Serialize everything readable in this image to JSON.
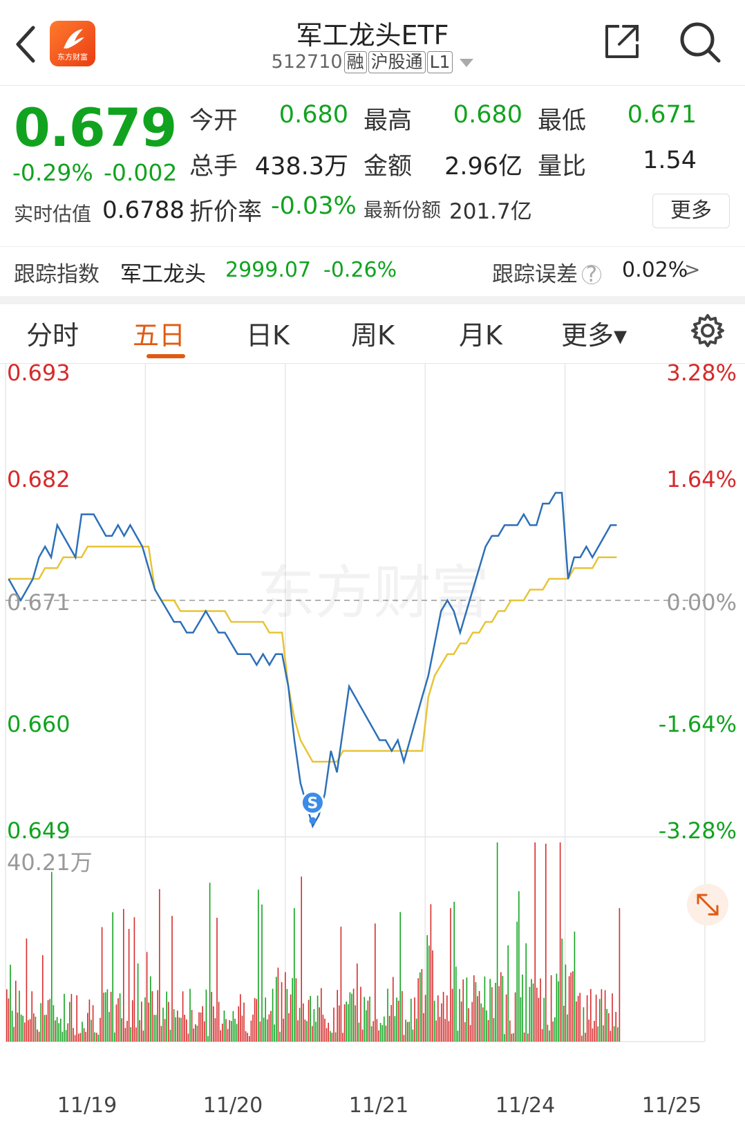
{
  "header": {
    "title": "军工龙头ETF",
    "code": "512710",
    "tags": [
      "融",
      "沪股通",
      "L1"
    ],
    "logo_text": "东方财富"
  },
  "quote": {
    "price": "0.679",
    "change_pct": "-0.29%",
    "change_abs": "-0.002",
    "open_label": "今开",
    "open": "0.680",
    "high_label": "最高",
    "high": "0.680",
    "low_label": "最低",
    "low": "0.671",
    "volume_label": "总手",
    "volume": "438.3万",
    "amount_label": "金额",
    "amount": "2.96亿",
    "ratio_label": "量比",
    "ratio": "1.54",
    "estimate_label": "实时估值",
    "estimate": "0.6788",
    "discount_label": "折价率",
    "discount": "-0.03%",
    "shares_label": "最新份额",
    "shares": "201.7亿",
    "more_label": "更多"
  },
  "tracking": {
    "label": "跟踪指数",
    "index_name": "军工龙头",
    "index_value": "2999.07",
    "index_change": "-0.26%",
    "error_label": "跟踪误差",
    "error_value": "0.02%",
    "help_glyph": "?",
    "arrow_glyph": ">"
  },
  "tabs": [
    {
      "label": "分时",
      "active": false
    },
    {
      "label": "五日",
      "active": true
    },
    {
      "label": "日K",
      "active": false
    },
    {
      "label": "周K",
      "active": false
    },
    {
      "label": "月K",
      "active": false
    },
    {
      "label": "更多▾",
      "active": false
    }
  ],
  "colors": {
    "up": "#d62a2a",
    "down": "#11a31f",
    "price_line": "#2c6fb8",
    "avg_line": "#e8c436",
    "accent": "#e05a12"
  },
  "watermark": "东方财富",
  "chart_data": {
    "type": "line",
    "days": [
      "11/19",
      "11/20",
      "11/21",
      "11/24",
      "11/25"
    ],
    "prev_close": 0.671,
    "ylim": [
      0.649,
      0.693
    ],
    "price_ticks": [
      "0.693",
      "0.682",
      "0.671",
      "0.660",
      "0.649"
    ],
    "pct_ticks": [
      "3.28%",
      "1.64%",
      "0.00%",
      "-1.64%",
      "-3.28%"
    ],
    "volume_max_label": "40.21万",
    "marker_label": "S",
    "series": [
      {
        "values": [
          0.673,
          0.672,
          0.671,
          0.672,
          0.673,
          0.675,
          0.676,
          0.675,
          0.678,
          0.677,
          0.676,
          0.675,
          0.679,
          0.679,
          0.679,
          0.678,
          0.677,
          0.677,
          0.678,
          0.677,
          0.678,
          0.677,
          0.676,
          0.674,
          0.672,
          0.671,
          0.67,
          0.669,
          0.669,
          0.668,
          0.668,
          0.669,
          0.67,
          0.669,
          0.668,
          0.668,
          0.667,
          0.666,
          0.666,
          0.666,
          0.665,
          0.666,
          0.665,
          0.666,
          0.666,
          0.663,
          0.658,
          0.654,
          0.652,
          0.65,
          0.651,
          0.653,
          0.657,
          0.655,
          0.659,
          0.663,
          0.662,
          0.661,
          0.66,
          0.659,
          0.658,
          0.658,
          0.657,
          0.658,
          0.656,
          0.658,
          0.66,
          0.662,
          0.664,
          0.667,
          0.67,
          0.671,
          0.67,
          0.668,
          0.67,
          0.672,
          0.674,
          0.676,
          0.677,
          0.677,
          0.678,
          0.678,
          0.678,
          0.679,
          0.678,
          0.678,
          0.68,
          0.68,
          0.681,
          0.681,
          0.673,
          0.675,
          0.675,
          0.676,
          0.675,
          0.676,
          0.677,
          0.678,
          0.678
        ]
      },
      {
        "values": [
          0.673,
          0.673,
          0.673,
          0.673,
          0.673,
          0.673,
          0.674,
          0.674,
          0.674,
          0.675,
          0.675,
          0.675,
          0.675,
          0.676,
          0.676,
          0.676,
          0.676,
          0.676,
          0.676,
          0.676,
          0.676,
          0.676,
          0.676,
          0.676,
          0.672,
          0.671,
          0.671,
          0.671,
          0.67,
          0.67,
          0.67,
          0.67,
          0.67,
          0.67,
          0.67,
          0.67,
          0.669,
          0.669,
          0.669,
          0.669,
          0.669,
          0.669,
          0.668,
          0.668,
          0.668,
          0.663,
          0.66,
          0.658,
          0.657,
          0.656,
          0.656,
          0.656,
          0.656,
          0.656,
          0.657,
          0.657,
          0.657,
          0.657,
          0.657,
          0.657,
          0.657,
          0.657,
          0.657,
          0.657,
          0.657,
          0.657,
          0.657,
          0.657,
          0.662,
          0.664,
          0.665,
          0.666,
          0.666,
          0.667,
          0.667,
          0.668,
          0.668,
          0.669,
          0.669,
          0.67,
          0.67,
          0.671,
          0.671,
          0.671,
          0.672,
          0.672,
          0.672,
          0.673,
          0.673,
          0.673,
          0.673,
          0.674,
          0.674,
          0.674,
          0.674,
          0.675,
          0.675,
          0.675,
          0.675
        ]
      }
    ]
  }
}
